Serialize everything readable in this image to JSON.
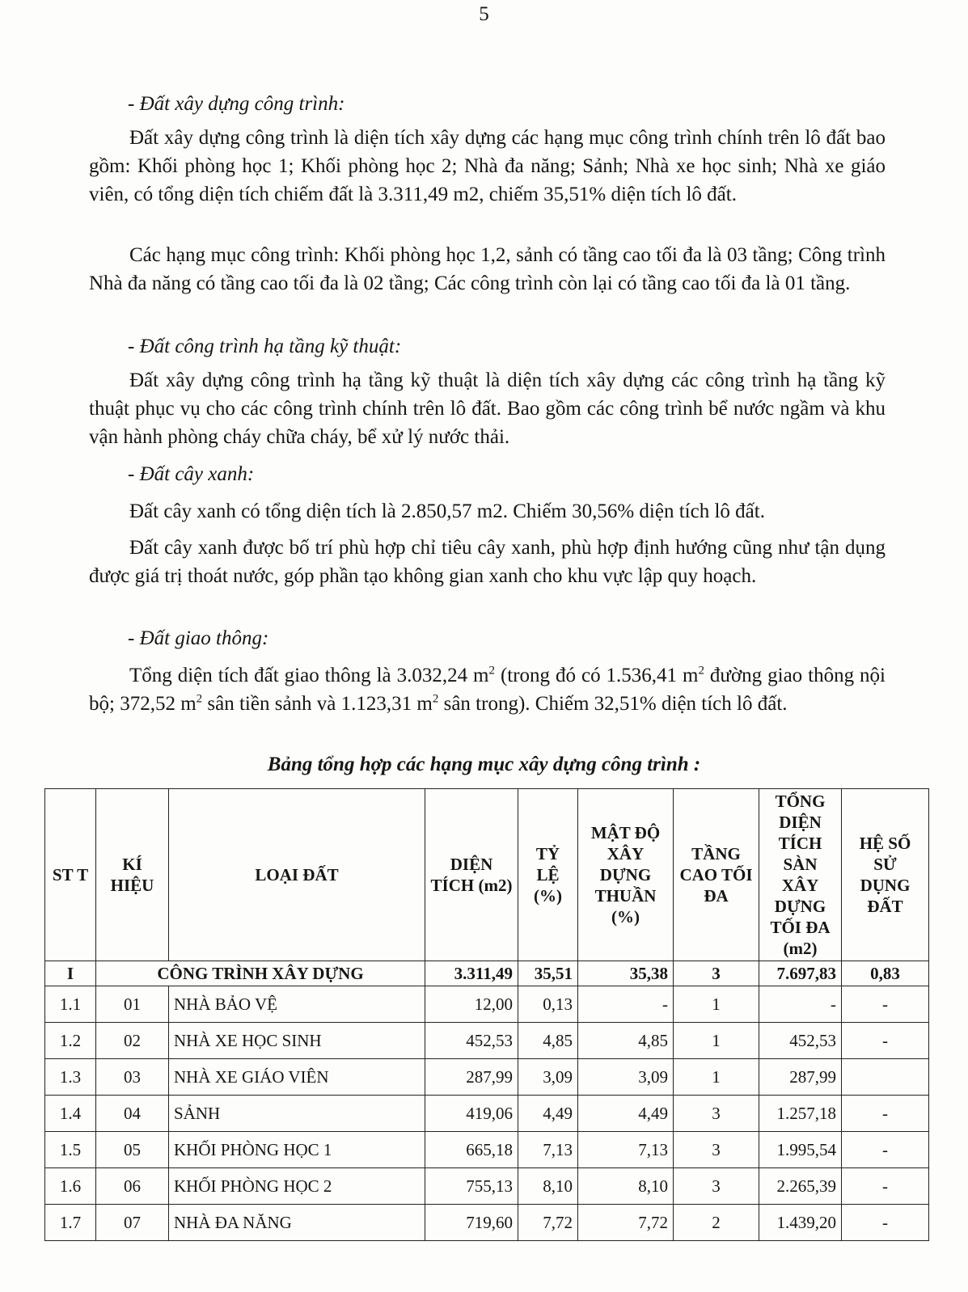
{
  "page_number": "5",
  "sections": [
    {
      "heading": "- Đất xây dựng công trình:",
      "paragraphs": [
        "Đất xây dựng công trình là diện tích xây dựng các hạng mục công trình chính trên lô đất bao gồm: Khối phòng học 1; Khối phòng học 2; Nhà đa năng; Sảnh; Nhà xe học sinh; Nhà xe giáo viên, có tổng diện tích chiếm đất là 3.311,49 m2, chiếm 35,51% diện tích lô đất.",
        "Các hạng mục công trình: Khối phòng học 1,2, sảnh có tầng cao tối đa là 03 tầng; Công trình Nhà đa năng có tầng cao tối đa là 02 tầng; Các công trình còn lại có tầng cao tối đa là 01 tầng."
      ]
    },
    {
      "heading": "- Đất công trình hạ tầng kỹ thuật:",
      "paragraphs": [
        "Đất xây dựng công trình hạ tầng kỹ thuật là diện tích xây dựng các công trình hạ tầng kỹ thuật phục vụ cho các công trình chính trên lô đất. Bao gồm các công trình bể nước ngầm và khu vận hành phòng cháy chữa cháy, bể xử lý nước thải."
      ]
    },
    {
      "heading": "- Đất cây xanh:",
      "paragraphs": [
        "Đất cây xanh có tổng diện tích là 2.850,57 m2. Chiếm 30,56% diện tích lô đất.",
        "Đất cây xanh được bố trí phù hợp chỉ tiêu cây xanh, phù hợp định hướng cũng như tận dụng được giá trị thoát nước, góp phần tạo không gian xanh cho khu vực lập quy hoạch."
      ]
    },
    {
      "heading": "- Đất giao thông:",
      "paragraph_parts": [
        "Tổng diện tích đất giao thông là 3.032,24 m",
        "2",
        " (trong đó có 1.536,41 m",
        "2",
        " đường giao thông nội bộ; 372,52 m",
        "2",
        " sân tiền sảnh và 1.123,31 m",
        "2",
        " sân trong). Chiếm 32,51% diện tích lô đất."
      ]
    }
  ],
  "table": {
    "caption": "Bảng tổng hợp các hạng mục xây dựng công trình :",
    "headers": [
      "ST T",
      "KÍ HIỆU",
      "LOẠI ĐẤT",
      "DIỆN TÍCH (m2)",
      "TỶ LỆ (%)",
      "MẬT ĐỘ XÂY DỰNG THUẦN (%)",
      "TẦNG CAO TỐI ĐA",
      "TỔNG DIỆN TÍCH SÀN XÂY DỰNG TỐI ĐA (m2)",
      "HỆ SỐ SỬ DỤNG ĐẤT"
    ],
    "group": {
      "stt": "I",
      "name": "CÔNG TRÌNH XÂY DỰNG",
      "area": "3.311,49",
      "ratio": "35,51",
      "density": "35,38",
      "floors": "3",
      "floor_area": "7.697,83",
      "coef": "0,83"
    },
    "rows": [
      {
        "stt": "1.1",
        "code": "01",
        "name": "NHÀ BẢO VỆ",
        "area": "12,00",
        "ratio": "0,13",
        "density": "-",
        "floors": "1",
        "floor_area": "-",
        "coef": "-"
      },
      {
        "stt": "1.2",
        "code": "02",
        "name": "NHÀ XE HỌC SINH",
        "area": "452,53",
        "ratio": "4,85",
        "density": "4,85",
        "floors": "1",
        "floor_area": "452,53",
        "coef": "-"
      },
      {
        "stt": "1.3",
        "code": "03",
        "name": "NHÀ XE GIÁO VIÊN",
        "area": "287,99",
        "ratio": "3,09",
        "density": "3,09",
        "floors": "1",
        "floor_area": "287,99",
        "coef": ""
      },
      {
        "stt": "1.4",
        "code": "04",
        "name": "SẢNH",
        "area": "419,06",
        "ratio": "4,49",
        "density": "4,49",
        "floors": "3",
        "floor_area": "1.257,18",
        "coef": "-"
      },
      {
        "stt": "1.5",
        "code": "05",
        "name": "KHỐI PHÒNG HỌC 1",
        "area": "665,18",
        "ratio": "7,13",
        "density": "7,13",
        "floors": "3",
        "floor_area": "1.995,54",
        "coef": "-"
      },
      {
        "stt": "1.6",
        "code": "06",
        "name": "KHỐI PHÒNG HỌC 2",
        "area": "755,13",
        "ratio": "8,10",
        "density": "8,10",
        "floors": "3",
        "floor_area": "2.265,39",
        "coef": "-"
      },
      {
        "stt": "1.7",
        "code": "07",
        "name": "NHÀ ĐA NĂNG",
        "area": "719,60",
        "ratio": "7,72",
        "density": "7,72",
        "floors": "2",
        "floor_area": "1.439,20",
        "coef": "-"
      }
    ]
  }
}
